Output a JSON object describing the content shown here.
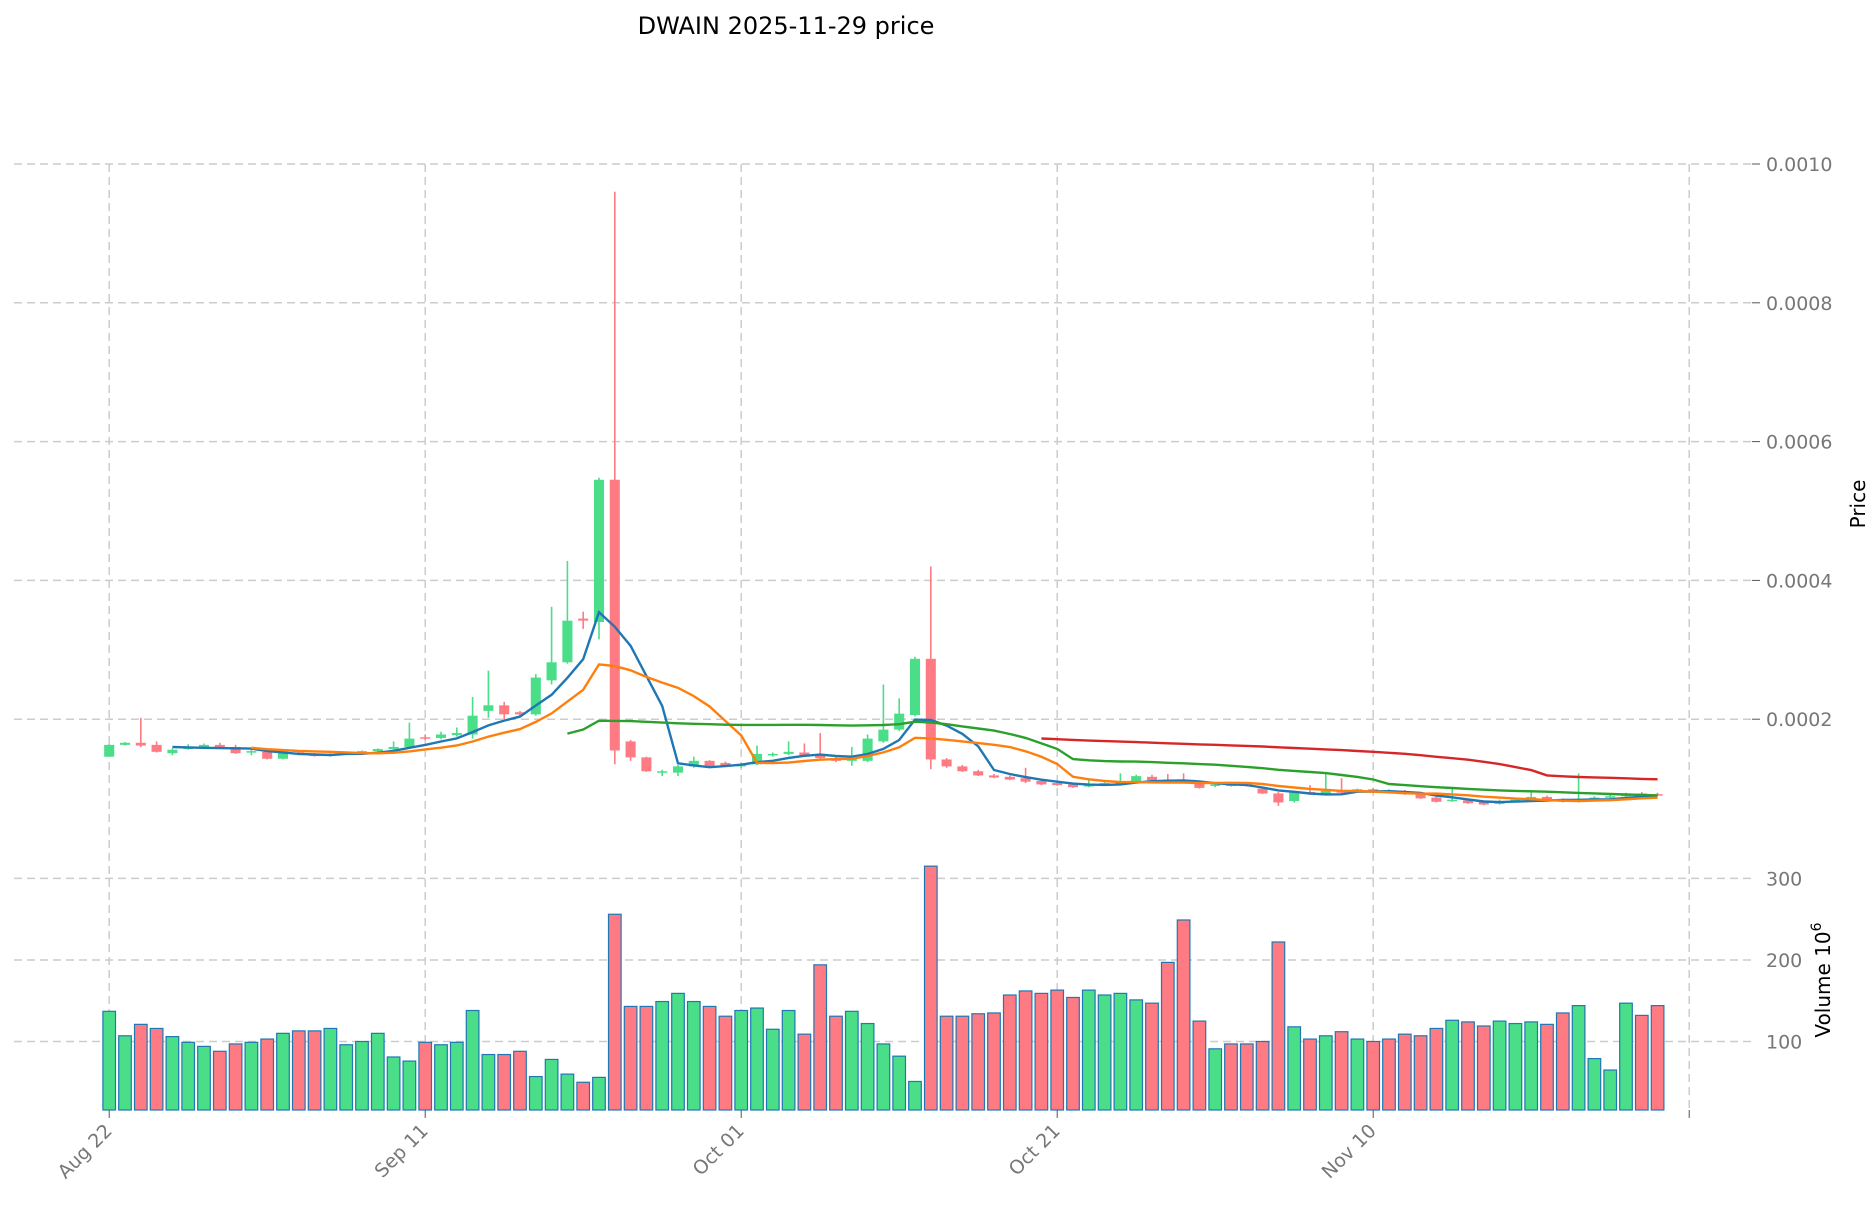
{
  "chart_data": {
    "type": "candlestick",
    "title": "DWAIN  2025-11-29  price",
    "ylabel": "Price",
    "volume_label": "Volume  10",
    "volume_exponent": "6",
    "ylim": [
      0,
      0.001
    ],
    "volume_ylim": [
      16,
      325
    ],
    "yticks": [
      "0.0002",
      "0.0004",
      "0.0006",
      "0.0008",
      "0.0010"
    ],
    "volume_yticks": [
      "100",
      "200",
      "300"
    ],
    "xticks": [
      {
        "label": "Aug 22",
        "day": 0
      },
      {
        "label": "Sep 11",
        "day": 20
      },
      {
        "label": "Oct 01",
        "day": 40
      },
      {
        "label": "Oct 21",
        "day": 60
      },
      {
        "label": "Nov 10",
        "day": 80
      },
      {
        "label": "",
        "day": 100
      }
    ],
    "start_date": "2025-08-22",
    "grid": true,
    "colors": {
      "up": "#4ade88",
      "down": "#ff7b84",
      "volume_edge": "#1f77b4",
      "ma5": "#1f77b4",
      "ma10": "#ff7f0e",
      "ma30": "#2ca02c",
      "ma60": "#d62728",
      "grid": "#cccccc",
      "tick_text": "#777777"
    },
    "moving_averages": [
      5,
      10,
      30,
      60
    ],
    "ohlcv": [
      [
        0.000146,
        0.000164,
        0.000146,
        0.000163,
        137
      ],
      [
        0.000163,
        0.000167,
        0.000162,
        0.000166,
        107
      ],
      [
        0.000166,
        0.000202,
        0.00016,
        0.000162,
        121
      ],
      [
        0.000163,
        0.000168,
        0.000152,
        0.000153,
        116
      ],
      [
        0.000151,
        0.000158,
        0.000148,
        0.000156,
        106
      ],
      [
        0.000157,
        0.000164,
        0.000156,
        0.00016,
        99
      ],
      [
        0.00016,
        0.000165,
        0.000159,
        0.000163,
        94
      ],
      [
        0.000163,
        0.000166,
        0.000157,
        0.00016,
        88
      ],
      [
        0.00016,
        0.000163,
        0.00015,
        0.000151,
        97
      ],
      [
        0.000152,
        0.000158,
        0.000148,
        0.000154,
        99
      ],
      [
        0.000153,
        0.000154,
        0.000142,
        0.000143,
        103
      ],
      [
        0.000143,
        0.000154,
        0.000142,
        0.000153,
        110
      ],
      [
        0.000152,
        0.000154,
        0.000148,
        0.000149,
        113
      ],
      [
        0.000149,
        0.000151,
        0.000146,
        0.000147,
        113
      ],
      [
        0.000147,
        0.000151,
        0.000146,
        0.00015,
        116
      ],
      [
        0.00015,
        0.000152,
        0.000149,
        0.000151,
        96
      ],
      [
        0.000151,
        0.000155,
        0.00015,
        0.000154,
        100
      ],
      [
        0.000154,
        0.000158,
        0.000153,
        0.000157,
        110
      ],
      [
        0.000157,
        0.000168,
        0.000156,
        0.00016,
        81
      ],
      [
        0.00016,
        0.000195,
        0.000158,
        0.000172,
        76
      ],
      [
        0.000174,
        0.000178,
        0.00017,
        0.000172,
        99
      ],
      [
        0.000173,
        0.000182,
        0.000171,
        0.000178,
        96
      ],
      [
        0.000177,
        0.000188,
        0.000175,
        0.00018,
        99
      ],
      [
        0.000178,
        0.000232,
        0.000172,
        0.000205,
        138
      ],
      [
        0.000212,
        0.00027,
        0.000202,
        0.00022,
        84
      ],
      [
        0.00022,
        0.000225,
        0.0002,
        0.000207,
        84
      ],
      [
        0.00021,
        0.000212,
        0.000205,
        0.000207,
        88
      ],
      [
        0.000207,
        0.000265,
        0.000205,
        0.00026,
        57
      ],
      [
        0.000256,
        0.000362,
        0.00025,
        0.000282,
        78
      ],
      [
        0.000282,
        0.000428,
        0.00028,
        0.000342,
        60
      ],
      [
        0.000345,
        0.000355,
        0.00033,
        0.000342,
        50
      ],
      [
        0.00034,
        0.000548,
        0.000315,
        0.000545,
        56
      ],
      [
        0.000545,
        0.00096,
        0.000135,
        0.000155,
        256
      ],
      [
        0.000168,
        0.00017,
        0.00014,
        0.000145,
        143
      ],
      [
        0.000145,
        0.000146,
        0.000124,
        0.000125,
        143
      ],
      [
        0.000123,
        0.000127,
        0.000118,
        0.000125,
        149
      ],
      [
        0.000123,
        0.000134,
        0.000118,
        0.000132,
        159
      ],
      [
        0.000132,
        0.000146,
        0.00013,
        0.00014,
        149
      ],
      [
        0.00014,
        0.000141,
        0.000131,
        0.000132,
        143
      ],
      [
        0.000137,
        0.000139,
        0.000131,
        0.000133,
        131
      ],
      [
        0.000132,
        0.000137,
        0.00013,
        0.000135,
        138
      ],
      [
        0.000135,
        0.000162,
        0.000134,
        0.00015,
        141
      ],
      [
        0.000148,
        0.000152,
        0.000146,
        0.00015,
        115
      ],
      [
        0.00015,
        0.000168,
        0.000148,
        0.000153,
        138
      ],
      [
        0.000152,
        0.000165,
        0.000146,
        0.000148,
        109
      ],
      [
        0.000148,
        0.00018,
        0.000142,
        0.000144,
        194
      ],
      [
        0.000144,
        0.000146,
        0.000138,
        0.00014,
        131
      ],
      [
        0.00014,
        0.00016,
        0.000133,
        0.000145,
        137
      ],
      [
        0.00014,
        0.000178,
        0.000138,
        0.000172,
        122
      ],
      [
        0.000168,
        0.00025,
        0.000166,
        0.000185,
        97
      ],
      [
        0.000185,
        0.00023,
        0.000183,
        0.000208,
        82
      ],
      [
        0.000206,
        0.00029,
        0.000204,
        0.000287,
        51
      ],
      [
        0.000287,
        0.00042,
        0.000128,
        0.000142,
        315
      ],
      [
        0.000142,
        0.000144,
        0.00013,
        0.000132,
        131
      ],
      [
        0.000132,
        0.000134,
        0.000124,
        0.000125,
        131
      ],
      [
        0.000125,
        0.000127,
        0.000118,
        0.000119,
        134
      ],
      [
        0.000119,
        0.000121,
        0.000115,
        0.000116,
        135
      ],
      [
        0.000117,
        0.000119,
        0.000112,
        0.000113,
        157
      ],
      [
        0.000115,
        0.00013,
        0.000108,
        0.00011,
        162
      ],
      [
        0.000111,
        0.000113,
        0.000105,
        0.000106,
        159
      ],
      [
        0.000108,
        0.00011,
        0.000104,
        0.000105,
        163
      ],
      [
        0.000106,
        0.000108,
        0.000101,
        0.000102,
        154
      ],
      [
        0.000103,
        0.000115,
        0.000102,
        0.000106,
        163
      ],
      [
        0.000105,
        0.00011,
        0.000104,
        0.000108,
        157
      ],
      [
        0.000107,
        0.000122,
        0.000106,
        0.000109,
        159
      ],
      [
        0.00011,
        0.00012,
        0.000109,
        0.000118,
        151
      ],
      [
        0.000117,
        0.00012,
        0.000111,
        0.000112,
        147
      ],
      [
        0.000113,
        0.000121,
        0.000109,
        0.00011,
        197
      ],
      [
        0.000112,
        0.000122,
        0.000109,
        0.00011,
        249
      ],
      [
        0.000108,
        0.00011,
        0.0001,
        0.000101,
        125
      ],
      [
        0.000104,
        0.000107,
        0.000102,
        0.000106,
        91
      ],
      [
        0.000106,
        0.000108,
        0.000103,
        0.000104,
        97
      ],
      [
        0.000106,
        0.000108,
        0.000103,
        0.000104,
        97
      ],
      [
        0.0001,
        0.000102,
        9.2e-05,
        9.3e-05,
        100
      ],
      [
        9.3e-05,
        9.5e-05,
        7.5e-05,
        8e-05,
        222
      ],
      [
        8.2e-05,
        9.7e-05,
        8e-05,
        9.6e-05,
        118
      ],
      [
        9.5e-05,
        0.000105,
        9.1e-05,
        9.2e-05,
        103
      ],
      [
        9.2e-05,
        0.000123,
        9.1e-05,
        9.7e-05,
        107
      ],
      [
        9.7e-05,
        0.000115,
        9.3e-05,
        9.4e-05,
        112
      ],
      [
        9.6e-05,
        0.0001,
        9.5e-05,
        9.9e-05,
        103
      ],
      [
        9.9e-05,
        0.000101,
        9.6e-05,
        9.7e-05,
        100
      ],
      [
        9.7e-05,
        9.9e-05,
        9.3e-05,
        9.4e-05,
        103
      ],
      [
        9.6e-05,
        9.8e-05,
        9.1e-05,
        9.2e-05,
        109
      ],
      [
        9.2e-05,
        9.4e-05,
        8.5e-05,
        8.6e-05,
        107
      ],
      [
        8.7e-05,
        8.9e-05,
        8e-05,
        8.1e-05,
        116
      ],
      [
        8.2e-05,
        0.0001,
        8.1e-05,
        8.4e-05,
        126
      ],
      [
        8.3e-05,
        8.5e-05,
        7.8e-05,
        7.9e-05,
        124
      ],
      [
        8.1e-05,
        8.3e-05,
        7.6e-05,
        7.7e-05,
        119
      ],
      [
        7.8e-05,
        8.4e-05,
        7.7e-05,
        8.2e-05,
        125
      ],
      [
        8.2e-05,
        8.6e-05,
        8.1e-05,
        8.4e-05,
        122
      ],
      [
        8.4e-05,
        9.8e-05,
        8.3e-05,
        8.8e-05,
        124
      ],
      [
        8.8e-05,
        9e-05,
        8.2e-05,
        8.3e-05,
        121
      ],
      [
        8.4e-05,
        8.6e-05,
        8e-05,
        8.1e-05,
        135
      ],
      [
        8.1e-05,
        0.000122,
        8e-05,
        8.3e-05,
        144
      ],
      [
        8.4e-05,
        8.9e-05,
        8.3e-05,
        8.7e-05,
        79
      ],
      [
        8.7e-05,
        9.1e-05,
        8.6e-05,
        8.9e-05,
        65
      ],
      [
        8.9e-05,
        9.4e-05,
        8.8e-05,
        9.2e-05,
        147
      ],
      [
        9.3e-05,
        9.5e-05,
        9e-05,
        9.1e-05,
        132
      ],
      [
        9.2e-05,
        9.4e-05,
        9e-05,
        9.1e-05,
        144
      ]
    ]
  }
}
